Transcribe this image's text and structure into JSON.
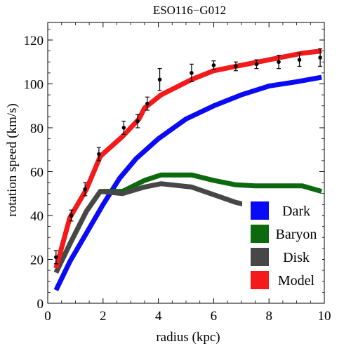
{
  "chart_data": {
    "type": "line",
    "title": "ESO116−G012",
    "xlabel": "radius (kpc)",
    "ylabel": "rotation speed (km/s)",
    "xlim": [
      0,
      10
    ],
    "ylim": [
      0,
      128
    ],
    "xticks": [
      0,
      2,
      4,
      6,
      8,
      10
    ],
    "yticks": [
      0,
      20,
      40,
      60,
      80,
      100,
      120
    ],
    "grid": false,
    "legend_position": "bottom-right",
    "series": [
      {
        "name": "Dark",
        "color": "#0a0af5",
        "x": [
          0.3,
          0.8,
          1.4,
          2.0,
          2.6,
          3.2,
          4.0,
          5.0,
          6.0,
          7.0,
          8.0,
          9.0,
          9.9
        ],
        "y": [
          6,
          19,
          32,
          45,
          57,
          66,
          75,
          84,
          90,
          95,
          99,
          101,
          103
        ]
      },
      {
        "name": "Baryon",
        "color": "#0d690d",
        "x": [
          0.3,
          0.8,
          1.4,
          1.9,
          2.7,
          3.5,
          4.1,
          5.2,
          6.0,
          6.8,
          7.5,
          8.4,
          9.2,
          9.9
        ],
        "y": [
          14,
          27,
          42,
          51,
          51,
          56,
          58.5,
          58.5,
          56,
          54,
          53.5,
          53.5,
          53.5,
          51
        ]
      },
      {
        "name": "Disk",
        "color": "#474747",
        "x": [
          0.3,
          0.8,
          1.4,
          1.9,
          2.7,
          3.5,
          4.1,
          5.2,
          6.0,
          6.8,
          7.5,
          8.4,
          9.2,
          9.9
        ],
        "y": [
          14,
          27,
          42,
          51,
          50,
          53,
          54.5,
          53,
          49.5,
          46,
          44,
          41.5,
          40,
          38
        ]
      },
      {
        "name": "Model",
        "color": "#f41a1a",
        "x": [
          0.3,
          0.8,
          1.4,
          1.9,
          2.7,
          3.3,
          3.5,
          4.1,
          5.2,
          6.0,
          6.8,
          7.6,
          8.4,
          9.2,
          9.9
        ],
        "y": [
          16,
          39,
          52,
          67,
          76,
          84,
          89,
          95,
          102,
          106,
          108,
          110,
          112,
          114,
          115
        ]
      }
    ],
    "observations": {
      "x": [
        0.3,
        0.85,
        1.35,
        1.85,
        2.75,
        3.25,
        3.6,
        4.05,
        5.2,
        6.0,
        6.8,
        7.55,
        8.35,
        9.1,
        9.85
      ],
      "y": [
        21,
        40,
        52,
        68,
        80,
        83,
        91,
        102,
        105,
        108.5,
        108,
        109,
        110,
        111,
        112
      ],
      "yerr": [
        3,
        2.5,
        3,
        3,
        3,
        3,
        3,
        5,
        4,
        2,
        2,
        2,
        3,
        3,
        4
      ]
    }
  }
}
